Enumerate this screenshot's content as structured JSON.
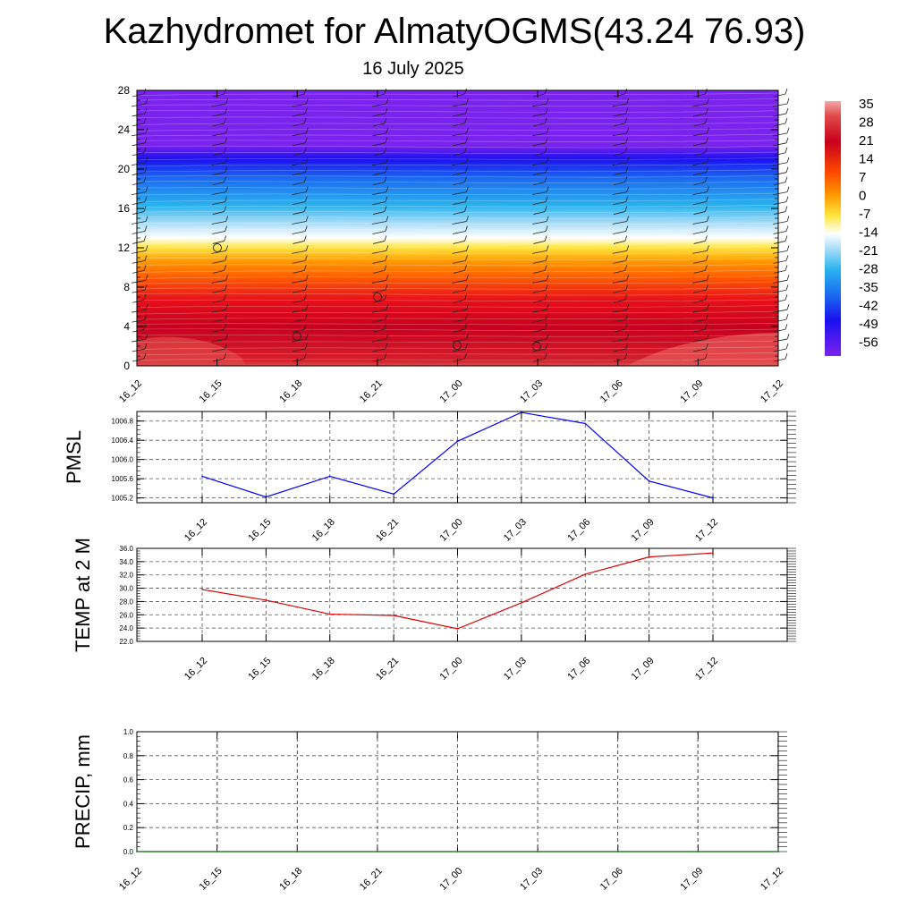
{
  "header": {
    "title": "Kazhydromet for AlmatyOGMS(43.24 76.93)",
    "subtitle": "16 July 2025"
  },
  "colorbar": {
    "labels": [
      "35",
      "28",
      "21",
      "14",
      "7",
      "0",
      "-7",
      "-14",
      "-21",
      "-28",
      "-35",
      "-42",
      "-49",
      "-56"
    ]
  },
  "chart_data": [
    {
      "type": "heatmap",
      "title": "",
      "x_ticks": [
        "16_12",
        "16_15",
        "16_18",
        "16_21",
        "17_00",
        "17_03",
        "17_06",
        "17_09",
        "17_12"
      ],
      "y_ticks": [
        "0",
        "4",
        "8",
        "12",
        "16",
        "20",
        "24",
        "28"
      ],
      "ylim": [
        0,
        28
      ],
      "zlim": [
        -56,
        35
      ],
      "note": "temperature cross-section with wind barbs",
      "colors": {
        "surface_max": "#f4a8a8",
        "warm": "#c8001e",
        "orange": "#ff7a00",
        "yellow": "#ffe640",
        "white": "#ffffff",
        "cyan": "#2ab4ee",
        "blue": "#1a2ef0",
        "purple": "#7a22ee"
      }
    },
    {
      "type": "line",
      "ylabel": "PMSL",
      "x": [
        "16_12",
        "16_15",
        "16_18",
        "16_21",
        "17_00",
        "17_03",
        "17_06",
        "17_09",
        "17_12"
      ],
      "values": [
        1005.65,
        1005.22,
        1005.65,
        1005.28,
        1006.38,
        1006.98,
        1006.75,
        1005.55,
        1005.2
      ],
      "y_ticks": [
        "1005.2",
        "1005.6",
        "1006.0",
        "1006.4",
        "1006.8"
      ],
      "ylim": [
        1005.1,
        1007.0
      ],
      "color": "#0000ff",
      "grid": true
    },
    {
      "type": "line",
      "ylabel": "TEMP at 2 M",
      "x": [
        "16_12",
        "16_15",
        "16_18",
        "16_21",
        "17_00",
        "17_03",
        "17_06",
        "17_09",
        "17_12"
      ],
      "values": [
        29.8,
        28.2,
        26.1,
        25.9,
        23.9,
        27.8,
        32.1,
        34.7,
        35.3
      ],
      "y_ticks": [
        "22.0",
        "24.0",
        "26.0",
        "28.0",
        "30.0",
        "32.0",
        "34.0",
        "36.0"
      ],
      "ylim": [
        22,
        36
      ],
      "color": "#e00000",
      "grid": true
    },
    {
      "type": "line",
      "ylabel": "PRECIP, mm",
      "x": [
        "16_12",
        "16_15",
        "16_18",
        "16_21",
        "17_00",
        "17_03",
        "17_06",
        "17_09",
        "17_12"
      ],
      "values": [
        0,
        0,
        0,
        0,
        0,
        0,
        0,
        0,
        0
      ],
      "y_ticks": [
        "0.0",
        "0.2",
        "0.4",
        "0.6",
        "0.8",
        "1.0"
      ],
      "ylim": [
        0,
        1
      ],
      "color": "#006400",
      "grid": true
    }
  ]
}
